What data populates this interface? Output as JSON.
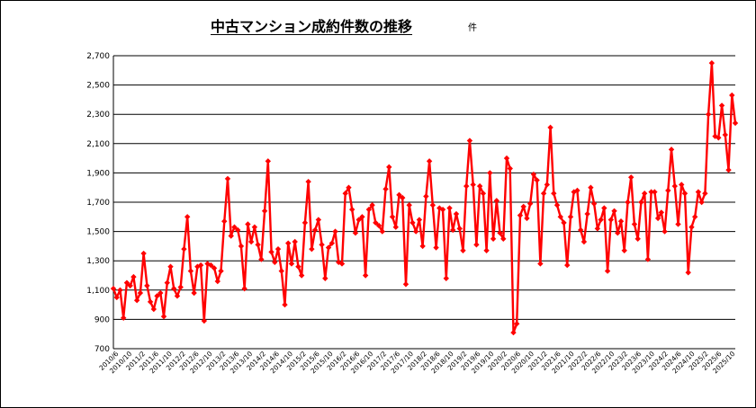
{
  "chart_data": {
    "type": "line",
    "title": "中古マンション成約件数の推移",
    "unit": "件",
    "xlabel": "",
    "ylabel": "",
    "ylim": [
      700,
      2700
    ],
    "yticks": [
      "2,700",
      "2,500",
      "2,300",
      "2,100",
      "1,900",
      "1,700",
      "1,500",
      "1,300",
      "1,100",
      "900",
      "700"
    ],
    "grid": true,
    "legend": "none",
    "color": "#ff0000",
    "x_start": "2010/6",
    "x_end": "2025/10",
    "x_labels": [
      "2010/6",
      "2010/10",
      "2011/2",
      "2011/6",
      "2011/10",
      "2012/2",
      "2012/6",
      "2012/10",
      "2013/2",
      "2013/6",
      "2013/10",
      "2014/2",
      "2014/6",
      "2014/10",
      "2015/2",
      "2015/6",
      "2015/10",
      "2016/2",
      "2016/6",
      "2016/10",
      "2017/2",
      "2017/6",
      "2017/10",
      "2018/2",
      "2018/6",
      "2018/10",
      "2019/2",
      "2019/6",
      "2019/10",
      "2020/2",
      "2020/6",
      "2020/10",
      "2021/2",
      "2021/6",
      "2021/10",
      "2022/2",
      "2022/6",
      "2022/10",
      "2023/2",
      "2023/6",
      "2023/10",
      "2024/2",
      "2024/6",
      "2024/10",
      "2025/2",
      "2025/6",
      "2025/10"
    ],
    "values": [
      1110,
      1050,
      1100,
      910,
      1150,
      1130,
      1190,
      1030,
      1080,
      1350,
      1130,
      1020,
      970,
      1060,
      1080,
      920,
      1150,
      1260,
      1110,
      1060,
      1120,
      1380,
      1600,
      1230,
      1080,
      1260,
      1270,
      890,
      1280,
      1270,
      1250,
      1160,
      1230,
      1570,
      1860,
      1470,
      1530,
      1510,
      1400,
      1110,
      1550,
      1430,
      1530,
      1410,
      1310,
      1640,
      1980,
      1360,
      1290,
      1380,
      1230,
      1000,
      1420,
      1280,
      1430,
      1260,
      1200,
      1560,
      1840,
      1380,
      1510,
      1580,
      1410,
      1180,
      1390,
      1420,
      1500,
      1290,
      1280,
      1760,
      1800,
      1650,
      1490,
      1580,
      1600,
      1200,
      1650,
      1680,
      1560,
      1540,
      1500,
      1790,
      1940,
      1600,
      1530,
      1750,
      1730,
      1140,
      1680,
      1560,
      1500,
      1580,
      1400,
      1740,
      1980,
      1680,
      1390,
      1660,
      1650,
      1180,
      1660,
      1510,
      1620,
      1520,
      1370,
      1810,
      2120,
      1820,
      1410,
      1810,
      1760,
      1370,
      1900,
      1450,
      1710,
      1490,
      1450,
      2000,
      1930,
      810,
      870,
      1610,
      1670,
      1590,
      1690,
      1890,
      1850,
      1280,
      1760,
      1820,
      2210,
      1760,
      1680,
      1600,
      1560,
      1270,
      1600,
      1770,
      1780,
      1510,
      1430,
      1620,
      1800,
      1690,
      1520,
      1580,
      1660,
      1230,
      1580,
      1640,
      1490,
      1570,
      1370,
      1700,
      1870,
      1550,
      1450,
      1700,
      1760,
      1310,
      1770,
      1770,
      1590,
      1630,
      1500,
      1780,
      2060,
      1810,
      1550,
      1820,
      1760,
      1220,
      1530,
      1600,
      1770,
      1700,
      1760,
      2300,
      2650,
      2150,
      2140,
      2360,
      2160,
      1920,
      2430,
      2240
    ]
  }
}
